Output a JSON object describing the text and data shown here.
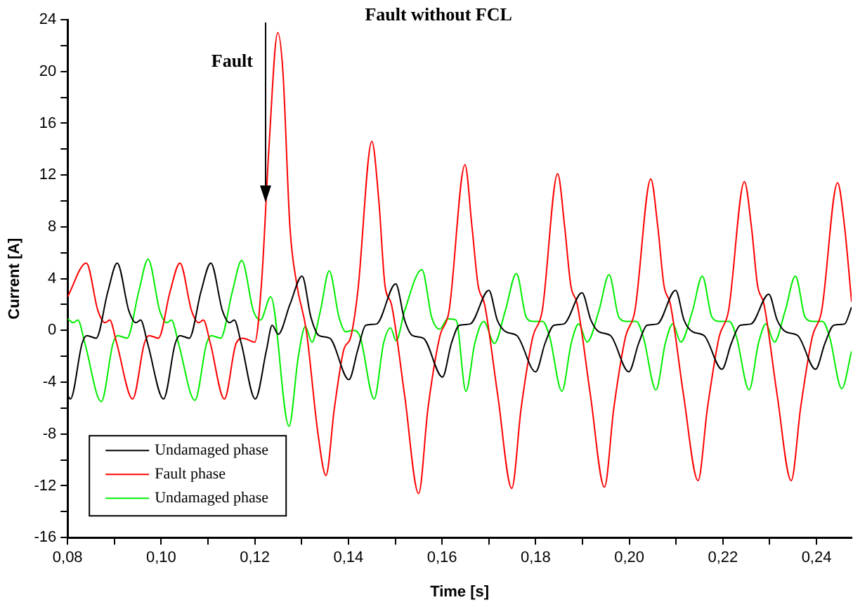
{
  "chart_data": {
    "type": "line",
    "title": "Fault without FCL",
    "xlabel": "Time [s]",
    "ylabel": "Current [A]",
    "xlim": [
      0.08,
      0.2475
    ],
    "ylim": [
      -16,
      24
    ],
    "xticks": [
      {
        "value": 0.08,
        "label": "0,08"
      },
      {
        "value": 0.09,
        "label": null
      },
      {
        "value": 0.1,
        "label": "0,10"
      },
      {
        "value": 0.11,
        "label": null
      },
      {
        "value": 0.12,
        "label": "0,12"
      },
      {
        "value": 0.13,
        "label": null
      },
      {
        "value": 0.14,
        "label": "0,14"
      },
      {
        "value": 0.15,
        "label": null
      },
      {
        "value": 0.16,
        "label": "0,16"
      },
      {
        "value": 0.17,
        "label": null
      },
      {
        "value": 0.18,
        "label": "0,18"
      },
      {
        "value": 0.19,
        "label": null
      },
      {
        "value": 0.2,
        "label": "0,20"
      },
      {
        "value": 0.21,
        "label": null
      },
      {
        "value": 0.22,
        "label": "0,22"
      },
      {
        "value": 0.23,
        "label": null
      },
      {
        "value": 0.24,
        "label": "0,24"
      }
    ],
    "yticks": [
      -16,
      {
        "value": -14,
        "label": null
      },
      -12,
      {
        "value": -10,
        "label": null
      },
      -8,
      {
        "value": -6,
        "label": null
      },
      -4,
      {
        "value": -2,
        "label": null
      },
      0,
      {
        "value": 2,
        "label": null
      },
      4,
      {
        "value": 6,
        "label": null
      },
      8,
      {
        "value": 10,
        "label": null
      },
      12,
      {
        "value": 14,
        "label": null
      },
      16,
      {
        "value": 18,
        "label": null
      },
      20,
      {
        "value": 22,
        "label": null
      },
      24
    ],
    "legend": "bottom left",
    "annotations": [
      "Fault"
    ],
    "series": [
      {
        "name": "Undamaged phase",
        "color": "#000000",
        "x": [
          0.08,
          0.0806,
          0.0831,
          0.0841,
          0.0861,
          0.0886,
          0.0906,
          0.0931,
          0.0946,
          0.0956,
          0.0971,
          0.1005,
          0.103,
          0.104,
          0.106,
          0.1085,
          0.1106,
          0.1131,
          0.1146,
          0.1156,
          0.1171,
          0.1201,
          0.1225,
          0.1237,
          0.125,
          0.1275,
          0.1301,
          0.132,
          0.1337,
          0.136,
          0.1401,
          0.142,
          0.1437,
          0.146,
          0.1501,
          0.152,
          0.1537,
          0.156,
          0.1601,
          0.162,
          0.1637,
          0.166,
          0.17,
          0.1718,
          0.1736,
          0.176,
          0.18,
          0.182,
          0.1839,
          0.186,
          0.1899,
          0.1918,
          0.1935,
          0.196,
          0.1999,
          0.202,
          0.2038,
          0.206,
          0.2099,
          0.2117,
          0.2135,
          0.216,
          0.2198,
          0.2218,
          0.2237,
          0.226,
          0.2298,
          0.2316,
          0.2334,
          0.236,
          0.2398,
          0.2418,
          0.2437,
          0.246,
          0.2475
        ],
        "values": [
          -5.0,
          -5.3,
          -1.0,
          -0.4,
          -0.6,
          3.0,
          5.2,
          1.5,
          0.6,
          0.8,
          -1.0,
          -5.3,
          -1.0,
          -0.4,
          -0.6,
          3.0,
          5.2,
          1.5,
          0.6,
          0.8,
          -1.0,
          -5.3,
          -1.5,
          0.4,
          -0.3,
          2.0,
          4.2,
          1.0,
          -0.4,
          -0.6,
          -3.8,
          -1.5,
          0.4,
          0.5,
          3.6,
          0.8,
          -0.4,
          -0.6,
          -3.6,
          -1.0,
          0.4,
          0.5,
          3.1,
          0.8,
          -0.1,
          -0.4,
          -3.2,
          -1.0,
          0.4,
          0.5,
          2.9,
          0.8,
          -0.1,
          -0.4,
          -3.2,
          -1.0,
          0.4,
          0.5,
          3.1,
          0.8,
          -0.1,
          -0.4,
          -3.0,
          -1.0,
          0.4,
          0.5,
          2.8,
          0.8,
          -0.1,
          -0.4,
          -3.0,
          -1.0,
          0.4,
          0.5,
          1.8
        ]
      },
      {
        "name": "Fault phase",
        "color": "#ff0000",
        "x": [
          0.08,
          0.084,
          0.0865,
          0.088,
          0.089,
          0.0905,
          0.0939,
          0.0964,
          0.0974,
          0.0994,
          0.1019,
          0.104,
          0.1065,
          0.108,
          0.109,
          0.1105,
          0.1135,
          0.116,
          0.1175,
          0.12,
          0.1215,
          0.123,
          0.1249,
          0.126,
          0.1275,
          0.129,
          0.131,
          0.1335,
          0.1352,
          0.137,
          0.139,
          0.1405,
          0.142,
          0.145,
          0.1465,
          0.1478,
          0.1492,
          0.152,
          0.155,
          0.157,
          0.1595,
          0.1615,
          0.1649,
          0.1664,
          0.1677,
          0.1691,
          0.1719,
          0.1749,
          0.1769,
          0.1794,
          0.1814,
          0.1847,
          0.1862,
          0.1875,
          0.1889,
          0.1917,
          0.1947,
          0.1967,
          0.1992,
          0.2012,
          0.2046,
          0.2061,
          0.2074,
          0.2088,
          0.2116,
          0.2147,
          0.2167,
          0.2192,
          0.2212,
          0.2246,
          0.2261,
          0.2274,
          0.2288,
          0.2316,
          0.2346,
          0.2366,
          0.2391,
          0.2411,
          0.2445,
          0.246,
          0.2475
        ],
        "values": [
          2.6,
          5.2,
          1.5,
          0.6,
          0.8,
          -1.0,
          -5.3,
          -1.0,
          -0.4,
          -0.6,
          3.0,
          5.2,
          1.5,
          0.6,
          0.8,
          -1.0,
          -5.3,
          -1.0,
          -0.6,
          -0.9,
          4.0,
          14.0,
          23.0,
          20.0,
          8.0,
          3.5,
          0.0,
          -8.0,
          -11.2,
          -6.0,
          -1.5,
          -0.5,
          3.0,
          14.6,
          10.0,
          3.5,
          2.0,
          -5.0,
          -12.6,
          -6.0,
          -0.5,
          1.5,
          12.8,
          8.0,
          3.5,
          2.0,
          -5.0,
          -12.2,
          -6.0,
          -0.5,
          1.5,
          12.1,
          8.0,
          3.5,
          2.0,
          -5.0,
          -12.1,
          -6.0,
          -0.5,
          1.5,
          11.7,
          8.0,
          3.5,
          2.0,
          -5.0,
          -11.6,
          -6.0,
          -0.5,
          1.5,
          11.5,
          8.0,
          3.5,
          2.0,
          -5.0,
          -11.6,
          -6.0,
          -0.5,
          1.5,
          11.4,
          8.0,
          2.2
        ]
      },
      {
        "name": "Undamaged phase",
        "color": "#00ee00",
        "x": [
          0.08,
          0.0812,
          0.0822,
          0.0837,
          0.0872,
          0.0897,
          0.0907,
          0.0927,
          0.0952,
          0.0972,
          0.0997,
          0.1012,
          0.1022,
          0.1037,
          0.1072,
          0.1097,
          0.1107,
          0.1127,
          0.1152,
          0.1172,
          0.1197,
          0.1212,
          0.1234,
          0.1273,
          0.1293,
          0.1308,
          0.1322,
          0.134,
          0.1359,
          0.138,
          0.1394,
          0.141,
          0.1425,
          0.1455,
          0.1475,
          0.149,
          0.1502,
          0.152,
          0.1557,
          0.1578,
          0.1595,
          0.1612,
          0.163,
          0.1651,
          0.167,
          0.1689,
          0.1712,
          0.1735,
          0.1759,
          0.178,
          0.1795,
          0.1815,
          0.183,
          0.1856,
          0.1876,
          0.1892,
          0.191,
          0.1935,
          0.1957,
          0.1978,
          0.1995,
          0.2015,
          0.203,
          0.2057,
          0.2077,
          0.2093,
          0.211,
          0.2135,
          0.2156,
          0.2177,
          0.2194,
          0.2214,
          0.2229,
          0.2256,
          0.2276,
          0.2292,
          0.231,
          0.2333,
          0.2355,
          0.2376,
          0.2393,
          0.2413,
          0.2428,
          0.2454,
          0.2475
        ],
        "values": [
          0.9,
          0.6,
          0.8,
          -1.0,
          -5.5,
          -1.0,
          -0.4,
          -0.6,
          3.0,
          5.5,
          1.5,
          0.6,
          0.8,
          -1.0,
          -5.4,
          -1.0,
          -0.4,
          -0.6,
          3.0,
          5.4,
          1.5,
          0.8,
          2.6,
          -7.4,
          -2.0,
          0.3,
          -0.9,
          1.5,
          4.6,
          1.0,
          -0.1,
          0.0,
          -0.5,
          -5.3,
          -1.0,
          0.2,
          -0.8,
          1.5,
          4.7,
          1.0,
          0.1,
          0.9,
          0.8,
          -4.7,
          -1.0,
          0.7,
          -1.0,
          1.5,
          4.4,
          1.0,
          0.7,
          0.7,
          -0.5,
          -4.7,
          -1.0,
          0.5,
          -0.9,
          1.5,
          4.3,
          1.0,
          0.7,
          0.7,
          -0.5,
          -4.6,
          -1.0,
          0.5,
          -0.9,
          1.5,
          4.2,
          1.0,
          0.7,
          0.7,
          -0.5,
          -4.6,
          -1.0,
          0.5,
          -0.9,
          1.5,
          4.2,
          1.0,
          0.7,
          0.7,
          -0.5,
          -4.5,
          -1.6
        ]
      }
    ]
  }
}
